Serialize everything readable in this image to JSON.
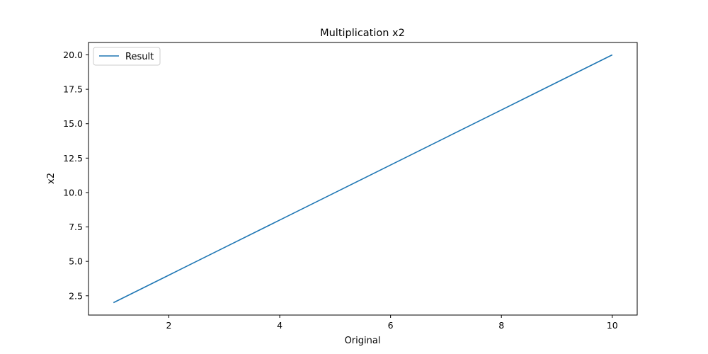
{
  "chart_data": {
    "type": "line",
    "title": "Multiplication x2",
    "xlabel": "Original",
    "ylabel": "x2",
    "x": [
      1,
      2,
      3,
      4,
      5,
      6,
      7,
      8,
      9,
      10
    ],
    "series": [
      {
        "name": "Result",
        "values": [
          2,
          4,
          6,
          8,
          10,
          12,
          14,
          16,
          18,
          20
        ],
        "color": "#1f77b4"
      }
    ],
    "xlim": [
      0.55,
      10.45
    ],
    "ylim": [
      1.1,
      20.9
    ],
    "xticks": [
      2,
      4,
      6,
      8,
      10
    ],
    "xtick_labels": [
      "2",
      "4",
      "6",
      "8",
      "10"
    ],
    "yticks": [
      2.5,
      5.0,
      7.5,
      10.0,
      12.5,
      15.0,
      17.5,
      20.0
    ],
    "ytick_labels": [
      "2.5",
      "5.0",
      "7.5",
      "10.0",
      "12.5",
      "15.0",
      "17.5",
      "20.0"
    ],
    "grid": false,
    "legend_position": "upper-left"
  }
}
